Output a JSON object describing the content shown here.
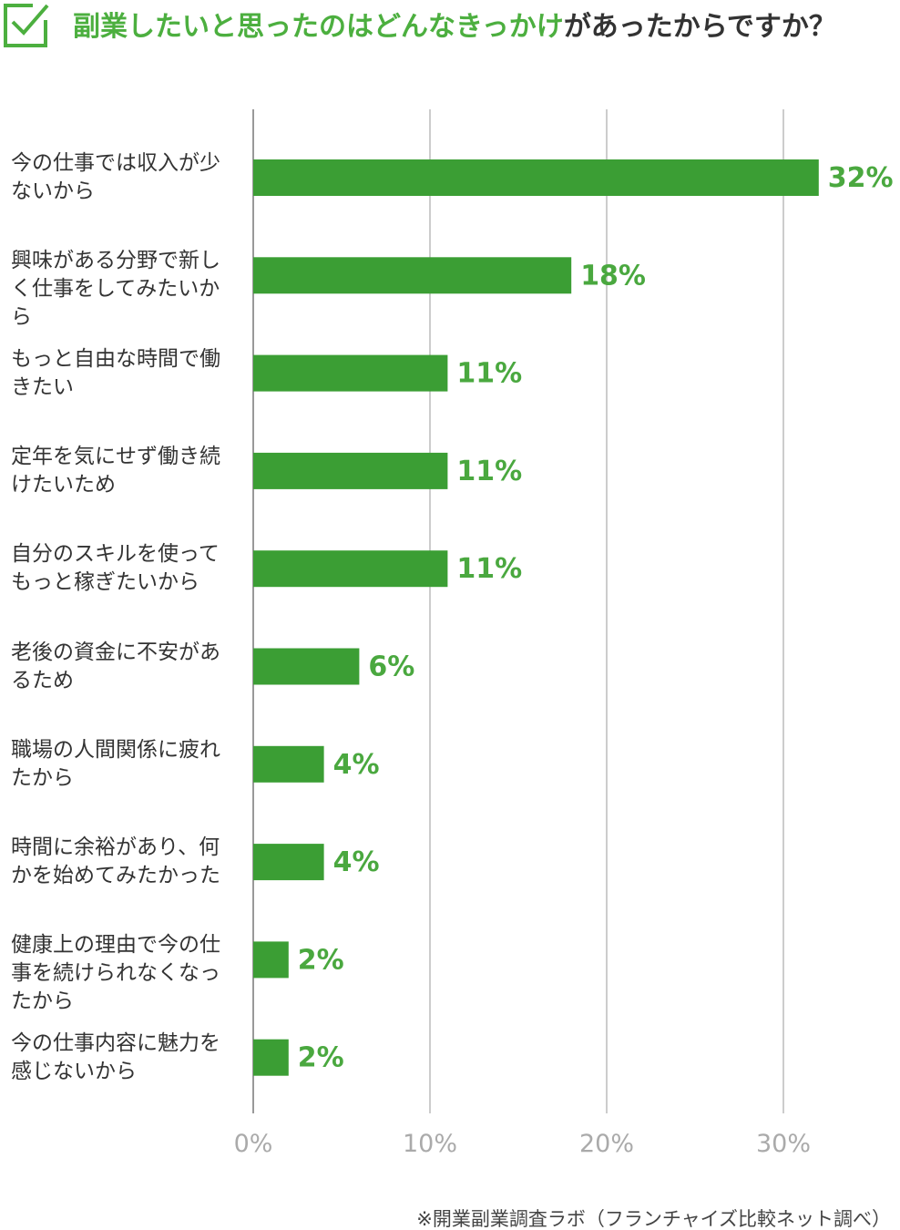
{
  "chart_data": {
    "type": "bar",
    "orientation": "horizontal",
    "title_parts": [
      {
        "text": "副業したいと思ったのはどんなきっかけ",
        "color": "#4caf3f"
      },
      {
        "text": "があったからですか？",
        "color": "#333333"
      }
    ],
    "categories": [
      "今の仕事では収入が少ないから",
      "興味がある分野で新しく仕事をしてみたいから",
      "もっと自由な時間で働きたい",
      "定年を気にせず働き続けたいため",
      "自分のスキルを使ってもっと稼ぎたいから",
      "老後の資金に不安があるため",
      "職場の人間関係に疲れたから",
      "時間に余裕があり、何かを始めてみたかった",
      "健康上の理由で今の仕事を続けられなくなったから",
      "今の仕事内容に魅力を感じないから"
    ],
    "values": [
      32,
      18,
      11,
      11,
      11,
      6,
      4,
      4,
      2,
      2
    ],
    "value_labels": [
      "32%",
      "18%",
      "11%",
      "11%",
      "11%",
      "6%",
      "4%",
      "4%",
      "2%",
      "2%"
    ],
    "color": "#3b9e34",
    "label_color": "#4aa83f",
    "xlim": [
      0,
      36
    ],
    "xticks": [
      {
        "value": 0,
        "label": "0%"
      },
      {
        "value": 10,
        "label": "10%"
      },
      {
        "value": 20,
        "label": "20%"
      },
      {
        "value": 30,
        "label": "30%"
      }
    ],
    "grid": true,
    "note": "※開業副業調査ラボ（フランチャイズ比較ネット調べ）"
  }
}
